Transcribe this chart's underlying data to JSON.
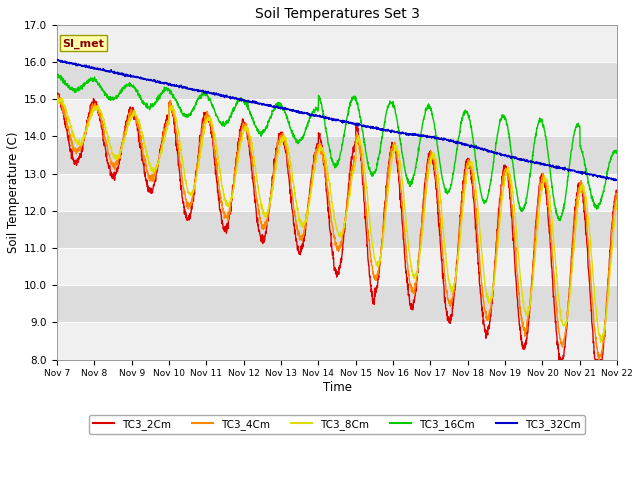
{
  "title": "Soil Temperatures Set 3",
  "ylabel": "Soil Temperature (C)",
  "xlabel": "Time",
  "ylim": [
    8.0,
    17.0
  ],
  "yticks": [
    8.0,
    9.0,
    10.0,
    11.0,
    12.0,
    13.0,
    14.0,
    15.0,
    16.0,
    17.0
  ],
  "xtick_labels": [
    "Nov 7",
    "Nov 8",
    "Nov 9",
    "Nov 10",
    "Nov 11",
    "Nov 12",
    "Nov 13",
    "Nov 14",
    "Nov 15",
    "Nov 16",
    "Nov 17",
    "Nov 18",
    "Nov 19",
    "Nov 20",
    "Nov 21",
    "Nov 22"
  ],
  "line_colors": [
    "#dd0000",
    "#ff8800",
    "#dddd00",
    "#00cc00",
    "#0000cc"
  ],
  "line_labels": [
    "TC3_2Cm",
    "TC3_4Cm",
    "TC3_8Cm",
    "TC3_16Cm",
    "TC3_32Cm"
  ],
  "fig_bg_color": "#ffffff",
  "plot_bg_color": "#f0f0f0",
  "band_light": "#f0f0f0",
  "band_dark": "#dcdcdc",
  "si_met_label": "SI_met",
  "si_met_bg": "#ffffaa",
  "si_met_border": "#999900",
  "si_met_text_color": "#880000",
  "n_days": 15
}
